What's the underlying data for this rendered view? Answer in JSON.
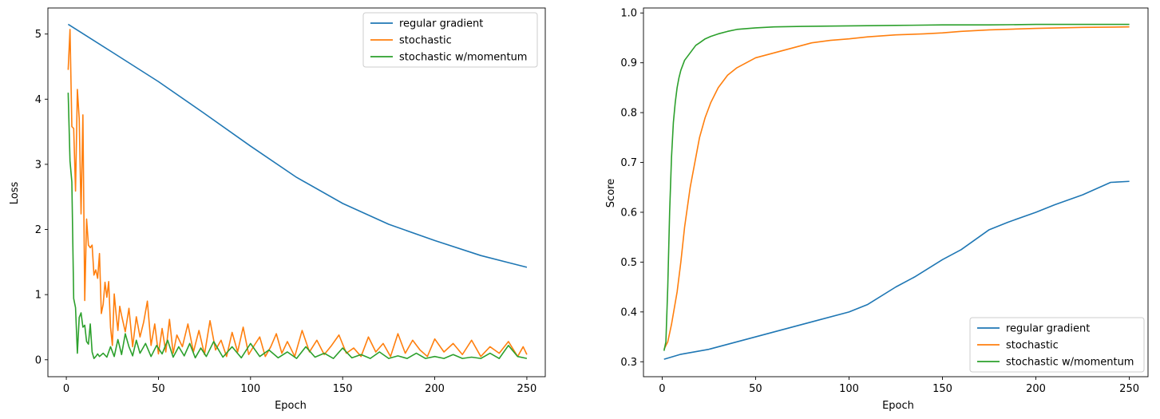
{
  "colors": {
    "regular": "#1f77b4",
    "stochastic": "#ff7f0e",
    "momentum": "#2ca02c",
    "axis": "#000000",
    "legend_border": "#cccccc"
  },
  "chart_data": [
    {
      "type": "line",
      "xlabel": "Epoch",
      "ylabel": "Loss",
      "xlim": [
        -10,
        260
      ],
      "ylim": [
        -0.26,
        5.4
      ],
      "xticks": [
        0,
        50,
        100,
        150,
        200,
        250
      ],
      "yticks": [
        0,
        1,
        2,
        3,
        4,
        5
      ],
      "legend_position": "top-right",
      "grid": false,
      "series": [
        {
          "name": "regular gradient",
          "color_key": "regular",
          "x": [
            1,
            25,
            50,
            75,
            100,
            125,
            150,
            175,
            200,
            225,
            250
          ],
          "y": [
            5.15,
            4.72,
            4.27,
            3.78,
            3.28,
            2.8,
            2.4,
            2.08,
            1.83,
            1.6,
            1.42
          ]
        },
        {
          "name": "stochastic",
          "color_key": "stochastic",
          "x": [
            1,
            2,
            3,
            4,
            5,
            6,
            7,
            8,
            9,
            10,
            11,
            12,
            13,
            14,
            15,
            16,
            17,
            18,
            19,
            20,
            21,
            22,
            23,
            24,
            25,
            26,
            27,
            28,
            29,
            30,
            32,
            34,
            36,
            38,
            40,
            42,
            44,
            46,
            48,
            50,
            52,
            54,
            56,
            58,
            60,
            63,
            66,
            69,
            72,
            75,
            78,
            81,
            84,
            87,
            90,
            93,
            96,
            99,
            102,
            105,
            108,
            111,
            114,
            117,
            120,
            124,
            128,
            132,
            136,
            140,
            144,
            148,
            152,
            156,
            160,
            164,
            168,
            172,
            176,
            180,
            184,
            188,
            192,
            196,
            200,
            205,
            210,
            215,
            220,
            225,
            230,
            235,
            240,
            245,
            248,
            250
          ],
          "y": [
            4.45,
            5.07,
            3.58,
            3.55,
            2.59,
            4.15,
            3.7,
            2.24,
            3.76,
            0.91,
            2.16,
            1.76,
            1.72,
            1.76,
            1.3,
            1.38,
            1.25,
            1.63,
            0.71,
            0.85,
            1.19,
            0.96,
            1.2,
            0.5,
            0.22,
            1.01,
            0.71,
            0.45,
            0.82,
            0.68,
            0.43,
            0.79,
            0.2,
            0.66,
            0.35,
            0.58,
            0.9,
            0.22,
            0.55,
            0.09,
            0.48,
            0.12,
            0.62,
            0.1,
            0.38,
            0.2,
            0.55,
            0.12,
            0.45,
            0.08,
            0.6,
            0.15,
            0.3,
            0.05,
            0.42,
            0.12,
            0.5,
            0.08,
            0.22,
            0.35,
            0.05,
            0.2,
            0.4,
            0.1,
            0.28,
            0.05,
            0.45,
            0.12,
            0.3,
            0.08,
            0.22,
            0.38,
            0.1,
            0.18,
            0.05,
            0.35,
            0.12,
            0.25,
            0.05,
            0.4,
            0.1,
            0.3,
            0.15,
            0.05,
            0.32,
            0.12,
            0.25,
            0.08,
            0.3,
            0.05,
            0.2,
            0.1,
            0.28,
            0.05,
            0.2,
            0.08
          ]
        },
        {
          "name": "stochastic w/momentum",
          "color_key": "momentum",
          "x": [
            1,
            2,
            3,
            4,
            5,
            6,
            7,
            8,
            9,
            10,
            11,
            12,
            13,
            14,
            15,
            16,
            17,
            18,
            20,
            22,
            24,
            26,
            28,
            30,
            32,
            34,
            36,
            38,
            40,
            43,
            46,
            49,
            52,
            55,
            58,
            61,
            64,
            67,
            70,
            73,
            76,
            80,
            85,
            90,
            95,
            100,
            105,
            110,
            115,
            120,
            125,
            130,
            135,
            140,
            145,
            150,
            155,
            160,
            165,
            170,
            175,
            180,
            185,
            190,
            195,
            200,
            205,
            210,
            215,
            220,
            225,
            230,
            235,
            240,
            245,
            250
          ],
          "y": [
            4.1,
            3.05,
            2.73,
            0.94,
            0.8,
            0.1,
            0.65,
            0.72,
            0.5,
            0.53,
            0.28,
            0.24,
            0.55,
            0.12,
            0.02,
            0.05,
            0.09,
            0.05,
            0.1,
            0.04,
            0.2,
            0.05,
            0.31,
            0.08,
            0.4,
            0.2,
            0.06,
            0.3,
            0.1,
            0.25,
            0.05,
            0.22,
            0.09,
            0.3,
            0.04,
            0.2,
            0.06,
            0.25,
            0.03,
            0.18,
            0.05,
            0.28,
            0.04,
            0.2,
            0.03,
            0.25,
            0.05,
            0.15,
            0.03,
            0.12,
            0.02,
            0.2,
            0.04,
            0.1,
            0.02,
            0.18,
            0.03,
            0.08,
            0.02,
            0.12,
            0.02,
            0.06,
            0.02,
            0.1,
            0.02,
            0.05,
            0.02,
            0.08,
            0.02,
            0.04,
            0.02,
            0.1,
            0.02,
            0.22,
            0.05,
            0.02
          ]
        }
      ]
    },
    {
      "type": "line",
      "xlabel": "Epoch",
      "ylabel": "Score",
      "xlim": [
        -10,
        260
      ],
      "ylim": [
        0.27,
        1.01
      ],
      "xticks": [
        0,
        50,
        100,
        150,
        200,
        250
      ],
      "yticks": [
        0.3,
        0.4,
        0.5,
        0.6,
        0.7,
        0.8,
        0.9,
        1.0
      ],
      "ytick_labels": [
        "0.3",
        "0.4",
        "0.5",
        "0.6",
        "0.7",
        "0.8",
        "0.9",
        "1.0"
      ],
      "legend_position": "bottom-right",
      "grid": false,
      "series": [
        {
          "name": "regular gradient",
          "color_key": "regular",
          "x": [
            1,
            10,
            25,
            50,
            75,
            100,
            110,
            125,
            135,
            150,
            160,
            175,
            185,
            200,
            210,
            225,
            240,
            250
          ],
          "y": [
            0.305,
            0.315,
            0.325,
            0.35,
            0.375,
            0.4,
            0.415,
            0.45,
            0.47,
            0.505,
            0.525,
            0.565,
            0.58,
            0.6,
            0.615,
            0.635,
            0.66,
            0.662
          ]
        },
        {
          "name": "stochastic",
          "color_key": "stochastic",
          "x": [
            1,
            3,
            5,
            8,
            10,
            12,
            15,
            18,
            20,
            23,
            26,
            30,
            35,
            40,
            45,
            50,
            60,
            70,
            80,
            90,
            100,
            110,
            125,
            140,
            150,
            160,
            175,
            200,
            225,
            250
          ],
          "y": [
            0.325,
            0.34,
            0.375,
            0.44,
            0.5,
            0.57,
            0.65,
            0.71,
            0.75,
            0.79,
            0.82,
            0.85,
            0.875,
            0.89,
            0.9,
            0.91,
            0.92,
            0.93,
            0.94,
            0.945,
            0.948,
            0.952,
            0.956,
            0.958,
            0.96,
            0.963,
            0.966,
            0.969,
            0.971,
            0.972
          ]
        },
        {
          "name": "stochastic w/momentum",
          "color_key": "momentum",
          "x": [
            1,
            2,
            3,
            4,
            5,
            6,
            7,
            8,
            9,
            10,
            12,
            14,
            16,
            18,
            20,
            23,
            26,
            30,
            35,
            40,
            50,
            60,
            75,
            100,
            125,
            150,
            175,
            200,
            225,
            250
          ],
          "y": [
            0.322,
            0.34,
            0.45,
            0.6,
            0.71,
            0.78,
            0.82,
            0.85,
            0.87,
            0.885,
            0.905,
            0.915,
            0.925,
            0.935,
            0.94,
            0.948,
            0.953,
            0.958,
            0.963,
            0.967,
            0.97,
            0.972,
            0.973,
            0.974,
            0.975,
            0.976,
            0.976,
            0.977,
            0.977,
            0.977
          ]
        }
      ]
    }
  ]
}
